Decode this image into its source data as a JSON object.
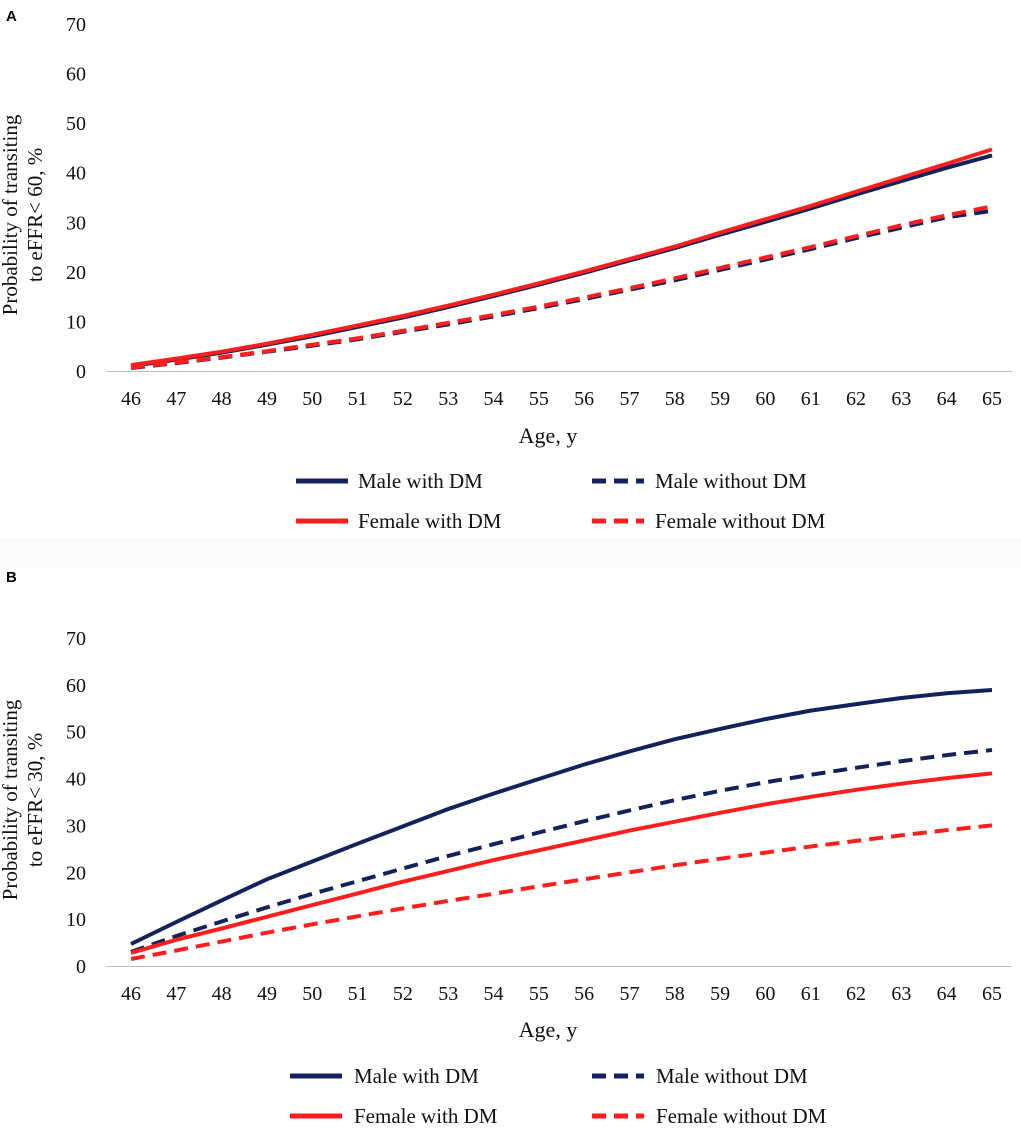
{
  "chart_data": [
    {
      "type": "line",
      "panel_label": "A",
      "ylabel_line1": "Probability  of transiting",
      "ylabel_line2": "to eFFR< 60, %",
      "xlabel": "Age, y",
      "ylim": [
        0,
        70
      ],
      "yticks": [
        "0",
        "10",
        "20",
        "30",
        "40",
        "50",
        "60",
        "70"
      ],
      "xlim": [
        46,
        65
      ],
      "x": [
        46,
        47,
        48,
        49,
        50,
        51,
        52,
        53,
        54,
        55,
        56,
        57,
        58,
        59,
        60,
        61,
        62,
        63,
        64,
        65
      ],
      "xtick_labels": [
        "46",
        "47",
        "48",
        "49",
        "50",
        "51",
        "52",
        "53",
        "54",
        "55",
        "56",
        "57",
        "58",
        "59",
        "60",
        "61",
        "62",
        "63",
        "64",
        "65"
      ],
      "legend_position": "bottom",
      "series": [
        {
          "key": "male_dm",
          "name": "Male with DM",
          "color": "#14225c",
          "dashed": false,
          "values": [
            1.0,
            2.3,
            3.7,
            5.3,
            7.0,
            8.9,
            10.8,
            12.9,
            15.1,
            17.4,
            19.8,
            22.3,
            24.8,
            27.5,
            30.1,
            32.8,
            35.6,
            38.3,
            41.0,
            43.5
          ]
        },
        {
          "key": "male_nodm",
          "name": "Male without DM",
          "color": "#14225c",
          "dashed": true,
          "values": [
            0.6,
            1.6,
            2.7,
            3.9,
            5.1,
            6.4,
            7.9,
            9.4,
            11.0,
            12.7,
            14.5,
            16.4,
            18.3,
            20.4,
            22.5,
            24.6,
            26.8,
            28.9,
            31.0,
            32.3
          ]
        },
        {
          "key": "female_dm",
          "name": "Female with DM",
          "color": "#ff1e1e",
          "dashed": false,
          "values": [
            1.2,
            2.5,
            3.9,
            5.5,
            7.3,
            9.2,
            11.1,
            13.2,
            15.4,
            17.7,
            20.1,
            22.6,
            25.1,
            27.9,
            30.6,
            33.3,
            36.2,
            39.0,
            41.8,
            44.7
          ]
        },
        {
          "key": "female_nodm",
          "name": "Female without DM",
          "color": "#ff1e1e",
          "dashed": true,
          "values": [
            0.7,
            1.7,
            2.8,
            4.0,
            5.3,
            6.6,
            8.1,
            9.7,
            11.3,
            13.0,
            14.8,
            16.7,
            18.7,
            20.8,
            22.9,
            25.0,
            27.2,
            29.4,
            31.4,
            33.2
          ]
        }
      ]
    },
    {
      "type": "line",
      "panel_label": "B",
      "ylabel_line1": "Probability  of transiting",
      "ylabel_line2": "to eFFR< 30,  %",
      "xlabel": "Age, y",
      "ylim": [
        0,
        70
      ],
      "yticks": [
        "0",
        "10",
        "20",
        "30",
        "40",
        "50",
        "60",
        "70"
      ],
      "xlim": [
        46,
        65
      ],
      "x": [
        46,
        47,
        48,
        49,
        50,
        51,
        52,
        53,
        54,
        55,
        56,
        57,
        58,
        59,
        60,
        61,
        62,
        63,
        64,
        65
      ],
      "xtick_labels": [
        "46",
        "47",
        "48",
        "49",
        "50",
        "51",
        "52",
        "53",
        "54",
        "55",
        "56",
        "57",
        "58",
        "59",
        "60",
        "61",
        "62",
        "63",
        "64",
        "65"
      ],
      "legend_position": "bottom",
      "series": [
        {
          "key": "male_dm",
          "name": "Male with DM",
          "color": "#14225c",
          "dashed": false,
          "values": [
            4.7,
            9.4,
            14.0,
            18.5,
            22.3,
            26.1,
            29.8,
            33.5,
            36.8,
            39.9,
            43.0,
            45.8,
            48.4,
            50.6,
            52.7,
            54.5,
            55.9,
            57.2,
            58.2,
            58.9
          ]
        },
        {
          "key": "male_nodm",
          "name": "Male without DM",
          "color": "#14225c",
          "dashed": true,
          "values": [
            3.0,
            6.4,
            9.5,
            12.5,
            15.4,
            18.1,
            20.8,
            23.5,
            26.0,
            28.5,
            30.9,
            33.2,
            35.4,
            37.4,
            39.2,
            40.8,
            42.3,
            43.7,
            45.0,
            46.1
          ]
        },
        {
          "key": "female_dm",
          "name": "Female with DM",
          "color": "#ff1e1e",
          "dashed": false,
          "values": [
            2.8,
            5.6,
            8.0,
            10.5,
            13.0,
            15.5,
            18.0,
            20.3,
            22.6,
            24.7,
            26.8,
            28.9,
            30.8,
            32.7,
            34.5,
            36.1,
            37.6,
            38.9,
            40.1,
            41.1
          ]
        },
        {
          "key": "female_nodm",
          "name": "Female without DM",
          "color": "#ff1e1e",
          "dashed": true,
          "values": [
            1.5,
            3.3,
            5.2,
            7.1,
            8.9,
            10.6,
            12.3,
            13.9,
            15.4,
            17.0,
            18.5,
            20.0,
            21.5,
            22.9,
            24.2,
            25.5,
            26.7,
            27.9,
            29.0,
            30.0
          ]
        }
      ]
    }
  ]
}
